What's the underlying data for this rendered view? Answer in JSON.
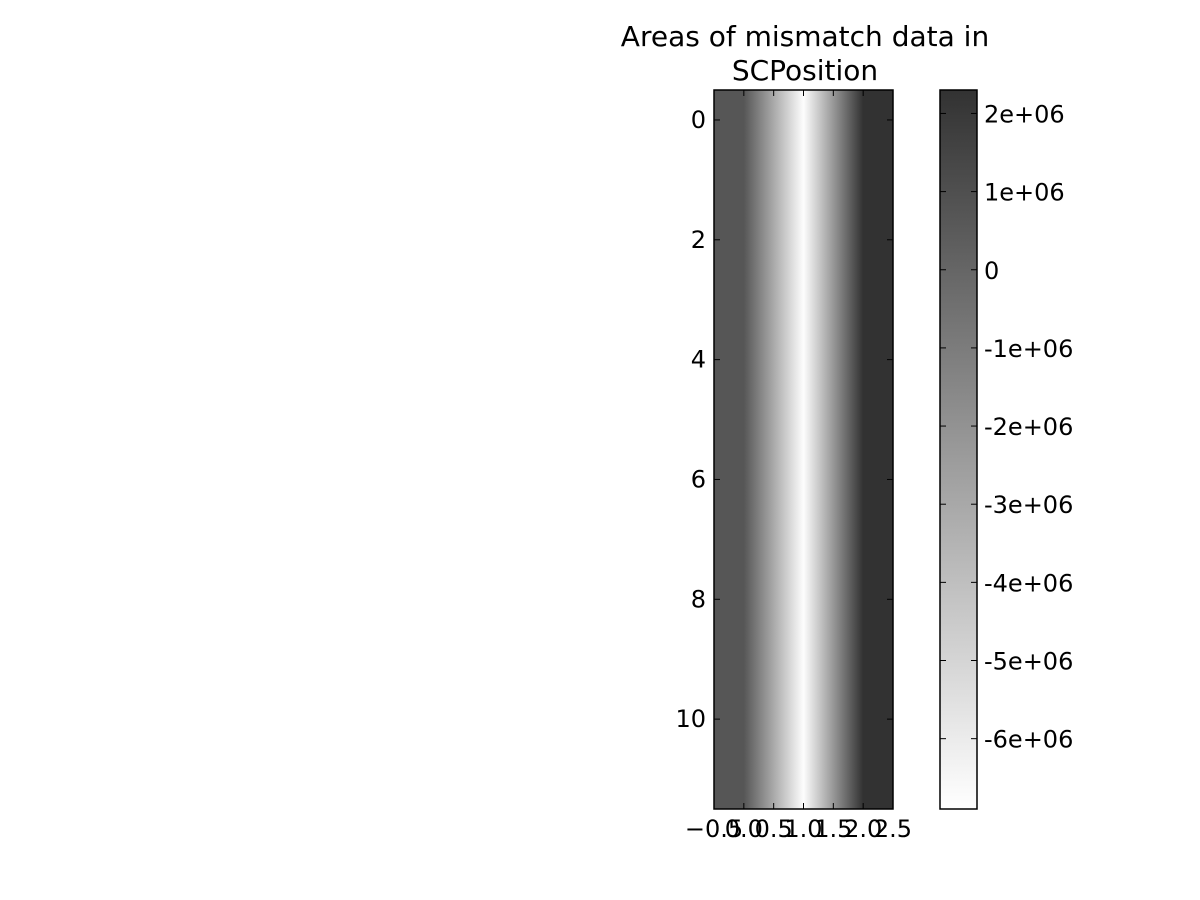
{
  "chart_data": {
    "type": "heatmap",
    "title_lines": [
      "Areas of mismatch data in",
      "SCPosition"
    ],
    "xlabel": "",
    "ylabel": "",
    "x_ticks": [
      "−0.5",
      "0.0",
      "0.5",
      "1.0",
      "1.5",
      "2.0",
      "2.5"
    ],
    "y_ticks": [
      "0",
      "2",
      "4",
      "6",
      "8",
      "10"
    ],
    "xlim": [
      -0.5,
      2.5
    ],
    "ylim": [
      11.5,
      -0.5
    ],
    "rows": 12,
    "columns": [
      0,
      1,
      2
    ],
    "column_values": [
      700000,
      -6800000,
      2300000
    ],
    "colormap": "gray_r",
    "colorbar": {
      "min": -6900000,
      "max": 2300000,
      "tick_values": [
        2000000,
        1000000,
        0,
        -1000000,
        -2000000,
        -3000000,
        -4000000,
        -5000000,
        -6000000
      ],
      "tick_labels": [
        "2e+06",
        "1e+06",
        "0",
        "-1e+06",
        "-2e+06",
        "-3e+06",
        "-4e+06",
        "-5e+06",
        "-6e+06"
      ]
    },
    "interpolation": "bilinear",
    "grid": false
  }
}
